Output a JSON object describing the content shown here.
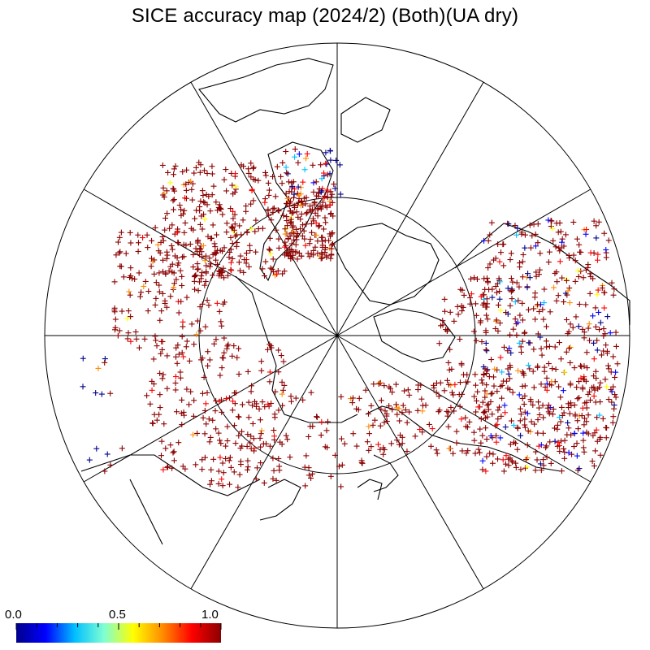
{
  "title": "SICE accuracy map (2024/2) (Both)(UA dry)",
  "colorbar": {
    "labels": [
      "0.0",
      "0.5",
      "1.0"
    ],
    "stops": [
      "#00008b",
      "#0000ff",
      "#00bfff",
      "#7fffd4",
      "#ffff00",
      "#ff8c00",
      "#ff0000",
      "#8b0000"
    ]
  },
  "colors": {
    "land_outline": "#000000",
    "grid": "#000000",
    "high_accuracy": "#8b0000",
    "low_accuracy": "#00008b"
  }
}
